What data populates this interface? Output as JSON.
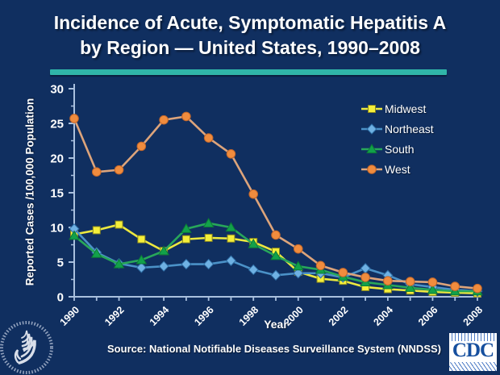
{
  "title": {
    "line1": "Incidence of Acute, Symptomatic Hepatitis A",
    "line2": "by Region — United States, 1990–2008"
  },
  "source": "Source: National Notifiable Diseases Surveillance System (NNDSS)",
  "logos": {
    "cdc_label": "CDC",
    "hhs_label": "hhs-seal"
  },
  "colors": {
    "background": "#102f60",
    "divider_teal": "#30b5a9",
    "axis": "#a9c0de",
    "text": "#ffffff"
  },
  "chart_data": {
    "type": "line",
    "title": "Incidence of Acute, Symptomatic Hepatitis A by Region — United States, 1990–2008",
    "xlabel": "Year",
    "ylabel": "Reported Cases /100,000 Population",
    "ylim": [
      0,
      30
    ],
    "yticks": [
      0,
      5,
      10,
      15,
      20,
      25,
      30
    ],
    "ytick_minor_step": 2.5,
    "xtick_label_years": [
      1990,
      1992,
      1994,
      1996,
      1998,
      2000,
      2002,
      2004,
      2006,
      2008
    ],
    "grid": false,
    "legend_position": "top-right",
    "x": [
      1990,
      1991,
      1992,
      1993,
      1994,
      1995,
      1996,
      1997,
      1998,
      1999,
      2000,
      2001,
      2002,
      2003,
      2004,
      2005,
      2006,
      2007,
      2008
    ],
    "series": [
      {
        "name": "Midwest",
        "marker": "square",
        "marker_color": "#f5ef3a",
        "marker_stroke": "#8a8820",
        "line_color": "#ece83f",
        "values": [
          9.0,
          9.6,
          10.4,
          8.3,
          6.6,
          8.3,
          8.5,
          8.4,
          7.9,
          6.5,
          3.6,
          2.6,
          2.3,
          1.4,
          1.1,
          0.9,
          0.7,
          0.6,
          0.5
        ]
      },
      {
        "name": "Northeast",
        "marker": "diamond",
        "marker_color": "#6fb1e3",
        "marker_stroke": "#2e6da4",
        "line_color": "#4b92c8",
        "values": [
          9.8,
          6.4,
          4.8,
          4.2,
          4.4,
          4.7,
          4.7,
          5.2,
          3.9,
          3.1,
          3.4,
          3.4,
          2.8,
          4.1,
          3.1,
          1.8,
          1.4,
          1.0,
          0.8
        ]
      },
      {
        "name": "South",
        "marker": "triangle",
        "marker_color": "#12a14a",
        "marker_stroke": "#0c7a36",
        "line_color": "#28a75a",
        "values": [
          8.8,
          6.2,
          4.7,
          5.3,
          6.6,
          9.8,
          10.6,
          10.0,
          7.6,
          5.9,
          4.4,
          3.9,
          2.9,
          2.1,
          1.7,
          1.3,
          1.0,
          0.8,
          0.8
        ]
      },
      {
        "name": "West",
        "marker": "circle",
        "marker_color": "#f08c3e",
        "marker_stroke": "#c2662a",
        "line_color": "#dda47b",
        "values": [
          25.7,
          18.0,
          18.3,
          21.7,
          25.5,
          26.0,
          22.9,
          20.6,
          14.8,
          8.9,
          6.9,
          4.5,
          3.5,
          2.8,
          2.3,
          2.2,
          2.1,
          1.5,
          1.2
        ]
      }
    ]
  }
}
